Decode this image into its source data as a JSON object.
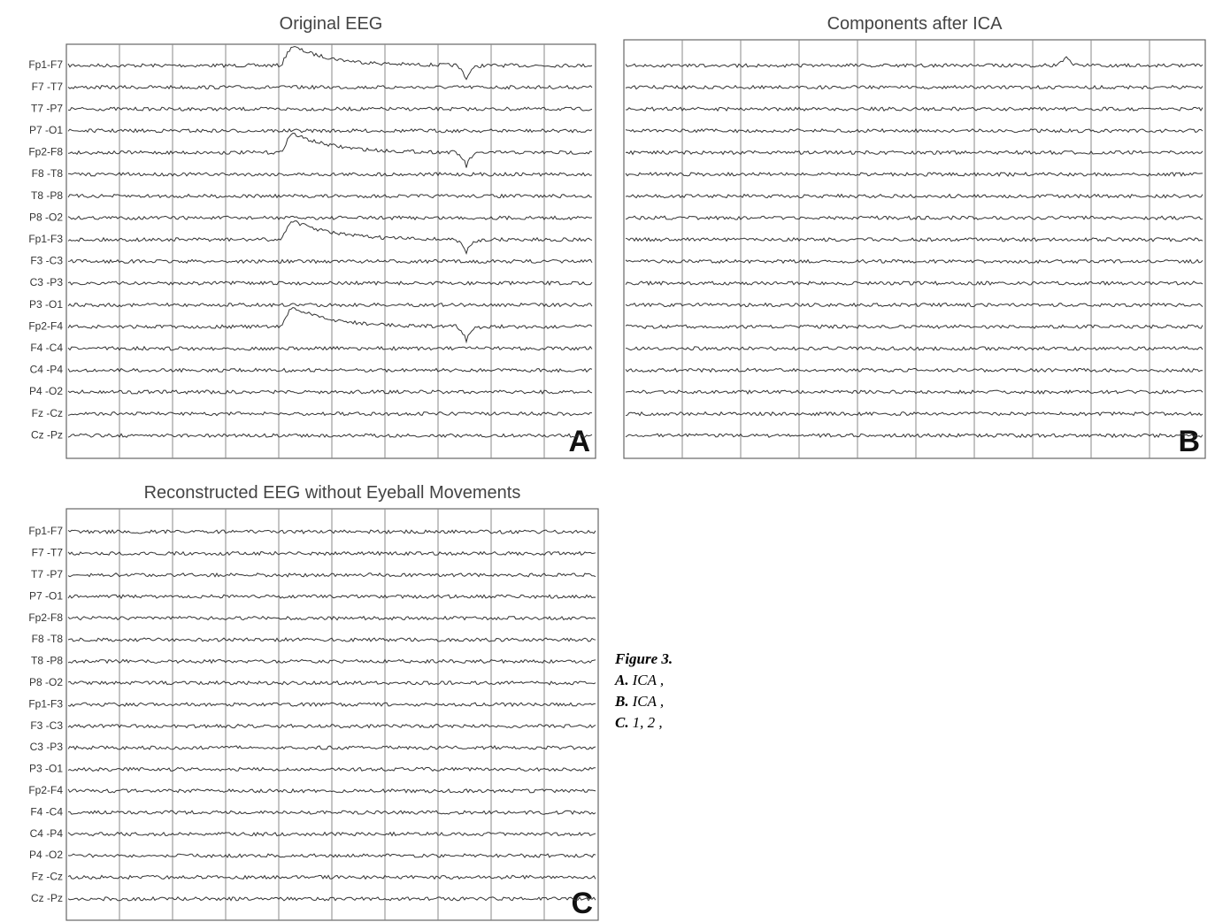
{
  "panels": [
    {
      "title": "Original EEG",
      "letter": "A",
      "channels": [
        "Fp1-F7",
        "F7 -T7",
        "T7 -P7",
        "P7 -O1",
        "Fp2-F8",
        "F8 -T8",
        "T8 -P8",
        "P8 -O2",
        "Fp1-F3",
        "F3 -C3",
        "C3 -P3",
        "P3 -O1",
        "Fp2-F4",
        "F4 -C4",
        "C4 -P4",
        "P4 -O2",
        "Fz -Cz",
        "Cz -Pz"
      ]
    },
    {
      "title": "Components after ICA",
      "letter": "B"
    },
    {
      "title": "Reconstructed EEG without Eyeball Movements",
      "letter": "C",
      "channels": [
        "Fp1-F7",
        "F7 -T7",
        "T7 -P7",
        "P7 -O1",
        "Fp2-F8",
        "F8 -T8",
        "T8 -P8",
        "P8 -O2",
        "Fp1-F3",
        "F3 -C3",
        "C3 -P3",
        "P3 -O1",
        "Fp2-F4",
        "F4 -C4",
        "C4 -P4",
        "P4 -O2",
        "Fz -Cz",
        "Cz -Pz"
      ]
    }
  ],
  "caption": {
    "title": "Figure 3.",
    "items": [
      {
        "label": "A.",
        "text": "ICA ,"
      },
      {
        "label": "B.",
        "text": "ICA ,"
      },
      {
        "label": "C.",
        "text": "1, 2 ,"
      }
    ]
  }
}
